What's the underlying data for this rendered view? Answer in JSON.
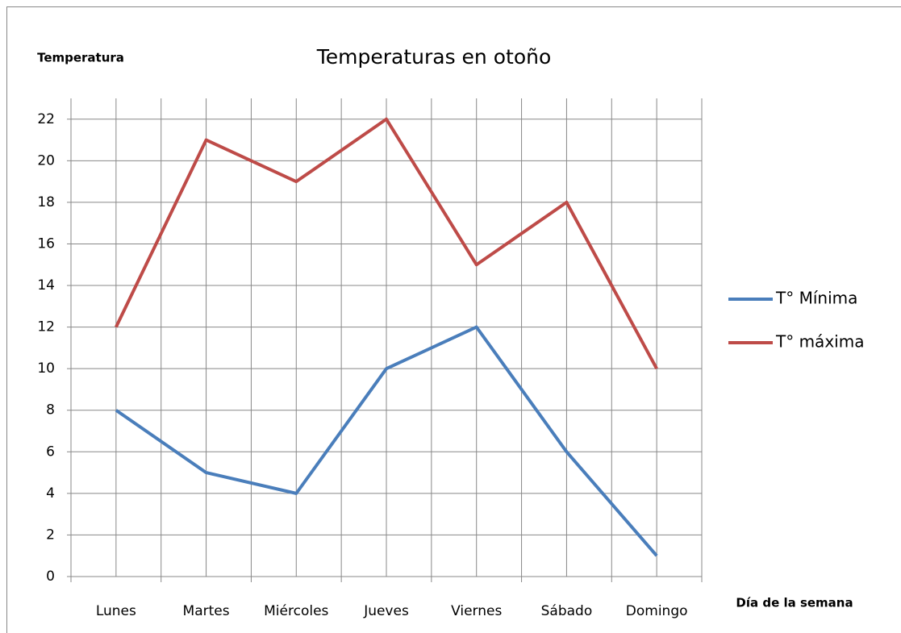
{
  "chart_data": {
    "type": "line",
    "title": "Temperaturas en otoño",
    "y_label": "Temperatura",
    "x_label": "Día de la semana",
    "categories": [
      "Lunes",
      "Martes",
      "Miércoles",
      "Jueves",
      "Viernes",
      "Sábado",
      "Domingo"
    ],
    "series": [
      {
        "name": "T° Mínima",
        "color": "#4a7ebb",
        "values": [
          8,
          5,
          4,
          10,
          12,
          6,
          1
        ]
      },
      {
        "name": "T° máxima",
        "color": "#be4b48",
        "values": [
          12,
          21,
          19,
          22,
          15,
          18,
          10
        ]
      }
    ],
    "ylim": [
      0,
      23
    ],
    "yticks": [
      0,
      2,
      4,
      6,
      8,
      10,
      12,
      14,
      16,
      18,
      20,
      22
    ],
    "grid": true,
    "legend": "right"
  }
}
